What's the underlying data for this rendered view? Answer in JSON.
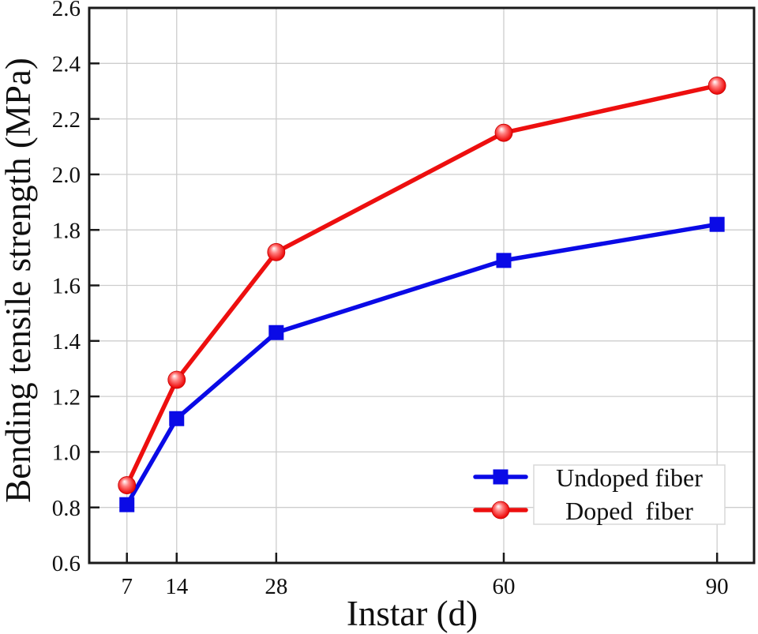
{
  "figure": {
    "background": "#ffffff",
    "frame_color": "#1a1a1a",
    "grid_color": "#cdcdcd"
  },
  "chart_data": {
    "type": "line",
    "title": "",
    "xlabel": "Instar (d)",
    "ylabel": "Bending tensile strength (MPa)",
    "x": [
      7,
      14,
      28,
      60,
      90
    ],
    "x_tick_labels": [
      "7",
      "14",
      "28",
      "60",
      "90"
    ],
    "y_ticks": [
      0.6,
      0.8,
      1.0,
      1.2,
      1.4,
      1.6,
      1.8,
      2.0,
      2.2,
      2.4,
      2.6
    ],
    "xlim": [
      1.7,
      95.2
    ],
    "ylim": [
      0.6,
      2.6
    ],
    "grid": true,
    "series": [
      {
        "name": "Undoped fiber",
        "marker": "square",
        "color": "#0a0ae6",
        "values": [
          0.81,
          1.12,
          1.43,
          1.69,
          1.82
        ]
      },
      {
        "name": "Doped fiber",
        "marker": "ball",
        "color": "#ed0f0f",
        "values": [
          0.88,
          1.26,
          1.72,
          2.15,
          2.32
        ]
      }
    ],
    "legend": {
      "position": "bottom-right",
      "labels": [
        "Undoped fiber",
        "Doped  fiber"
      ]
    }
  }
}
